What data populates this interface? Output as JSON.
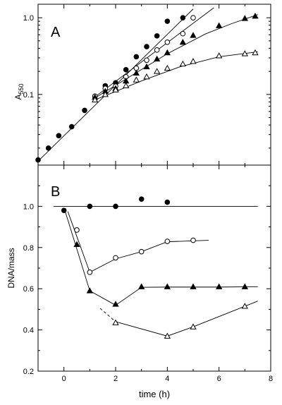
{
  "figure": {
    "xlabel": "time (h)"
  },
  "chart_data": [
    {
      "panel": "A",
      "type": "scatter",
      "ylabel_main": "A",
      "ylabel_sub": "550",
      "yscale": "log",
      "xlim": [
        -1,
        8
      ],
      "ylim": [
        0.012,
        1.5
      ],
      "yticks": [
        0.1,
        1.0
      ],
      "ytick_labels": [
        "0.1",
        "1.0"
      ],
      "xticks": [
        0,
        2,
        4,
        6,
        8
      ],
      "grid": false,
      "series": [
        {
          "marker": "filled-circle",
          "x": [
            -1,
            -0.6,
            -0.2,
            0.3,
            0.8,
            1.2,
            1.6,
            2.0,
            2.4,
            2.8,
            3.2,
            3.6,
            4.0,
            4.6
          ],
          "y": [
            0.014,
            0.02,
            0.029,
            0.038,
            0.062,
            0.093,
            0.13,
            0.142,
            0.21,
            0.31,
            0.42,
            0.58,
            0.9,
            1.0
          ],
          "fit": [
            [
              -1,
              0.0135
            ],
            [
              5.0,
              1.3
            ]
          ]
        },
        {
          "marker": "open-circle",
          "x": [
            1.2,
            1.6,
            2.0,
            2.4,
            2.8,
            3.2,
            3.6,
            4.0,
            4.6,
            5.0
          ],
          "y": [
            0.095,
            0.12,
            0.128,
            0.17,
            0.22,
            0.28,
            0.38,
            0.48,
            0.62,
            1.0
          ],
          "fit": [
            [
              1.2,
              0.093
            ],
            [
              5.8,
              1.35
            ]
          ]
        },
        {
          "marker": "filled-triangle",
          "x": [
            1.2,
            1.6,
            2.0,
            2.4,
            2.8,
            3.2,
            3.6,
            4.0,
            4.6,
            5.0,
            6.0,
            7.0,
            7.4
          ],
          "y": [
            0.092,
            0.11,
            0.12,
            0.15,
            0.19,
            0.23,
            0.29,
            0.35,
            0.48,
            0.59,
            0.79,
            0.98,
            1.05
          ],
          "fit": [
            [
              1.2,
              0.09
            ],
            [
              4.0,
              0.34
            ],
            [
              5.5,
              0.62
            ],
            [
              6.5,
              0.84
            ],
            [
              7.5,
              1.1
            ]
          ]
        },
        {
          "marker": "open-triangle",
          "x": [
            1.2,
            1.6,
            2.0,
            2.4,
            2.8,
            3.2,
            3.6,
            4.0,
            4.6,
            5.0,
            6.0,
            7.0,
            7.4
          ],
          "y": [
            0.085,
            0.1,
            0.115,
            0.13,
            0.155,
            0.17,
            0.2,
            0.22,
            0.25,
            0.27,
            0.32,
            0.34,
            0.35
          ],
          "fit": [
            [
              1.2,
              0.085
            ],
            [
              3.0,
              0.15
            ],
            [
              4.5,
              0.23
            ],
            [
              6.0,
              0.31
            ],
            [
              7.5,
              0.36
            ]
          ]
        }
      ]
    },
    {
      "panel": "B",
      "type": "scatter",
      "ylabel": "DNA/mass",
      "xlim": [
        -1,
        8
      ],
      "ylim": [
        0.2,
        1.2
      ],
      "yticks": [
        0.2,
        0.4,
        0.6,
        0.8,
        1.0
      ],
      "ytick_labels": [
        "0.2",
        "0.4",
        "0.6",
        "0.8",
        "1.0"
      ],
      "xticks": [
        0,
        2,
        4,
        6,
        8
      ],
      "xtick_labels": [
        "0",
        "2",
        "4",
        "6",
        "8"
      ],
      "grid": false,
      "reference_line": 1.0,
      "series": [
        {
          "marker": "filled-circle",
          "x": [
            0,
            1,
            2,
            3,
            4
          ],
          "y": [
            0.98,
            1.0,
            1.0,
            1.035,
            1.02
          ]
        },
        {
          "marker": "open-circle",
          "x": [
            0.5,
            1,
            2,
            3,
            4,
            5
          ],
          "y": [
            0.885,
            0.68,
            0.75,
            0.78,
            0.83,
            0.835
          ],
          "fit": [
            [
              0.15,
              0.975
            ],
            [
              1,
              0.68
            ],
            [
              2,
              0.745
            ],
            [
              3,
              0.78
            ],
            [
              4,
              0.828
            ],
            [
              5.6,
              0.835
            ]
          ]
        },
        {
          "marker": "filled-triangle",
          "x": [
            0.5,
            1,
            2,
            3,
            4,
            5,
            6,
            7
          ],
          "y": [
            0.815,
            0.59,
            0.525,
            0.61,
            0.61,
            0.61,
            0.61,
            0.61
          ],
          "fit": [
            [
              0.05,
              0.975
            ],
            [
              1,
              0.59
            ],
            [
              2,
              0.52
            ],
            [
              3,
              0.607
            ],
            [
              4,
              0.608
            ],
            [
              5,
              0.608
            ],
            [
              6,
              0.608
            ],
            [
              7.5,
              0.61
            ]
          ]
        },
        {
          "marker": "open-triangle",
          "x": [
            2,
            4,
            5,
            7
          ],
          "y": [
            0.435,
            0.37,
            0.415,
            0.515
          ],
          "fit": [
            [
              2,
              0.44
            ],
            [
              4,
              0.37
            ],
            [
              5,
              0.415
            ],
            [
              7,
              0.515
            ],
            [
              7.5,
              0.54
            ]
          ],
          "dashed": [
            [
              1.4,
              0.505
            ],
            [
              2.0,
              0.44
            ]
          ]
        }
      ]
    }
  ]
}
